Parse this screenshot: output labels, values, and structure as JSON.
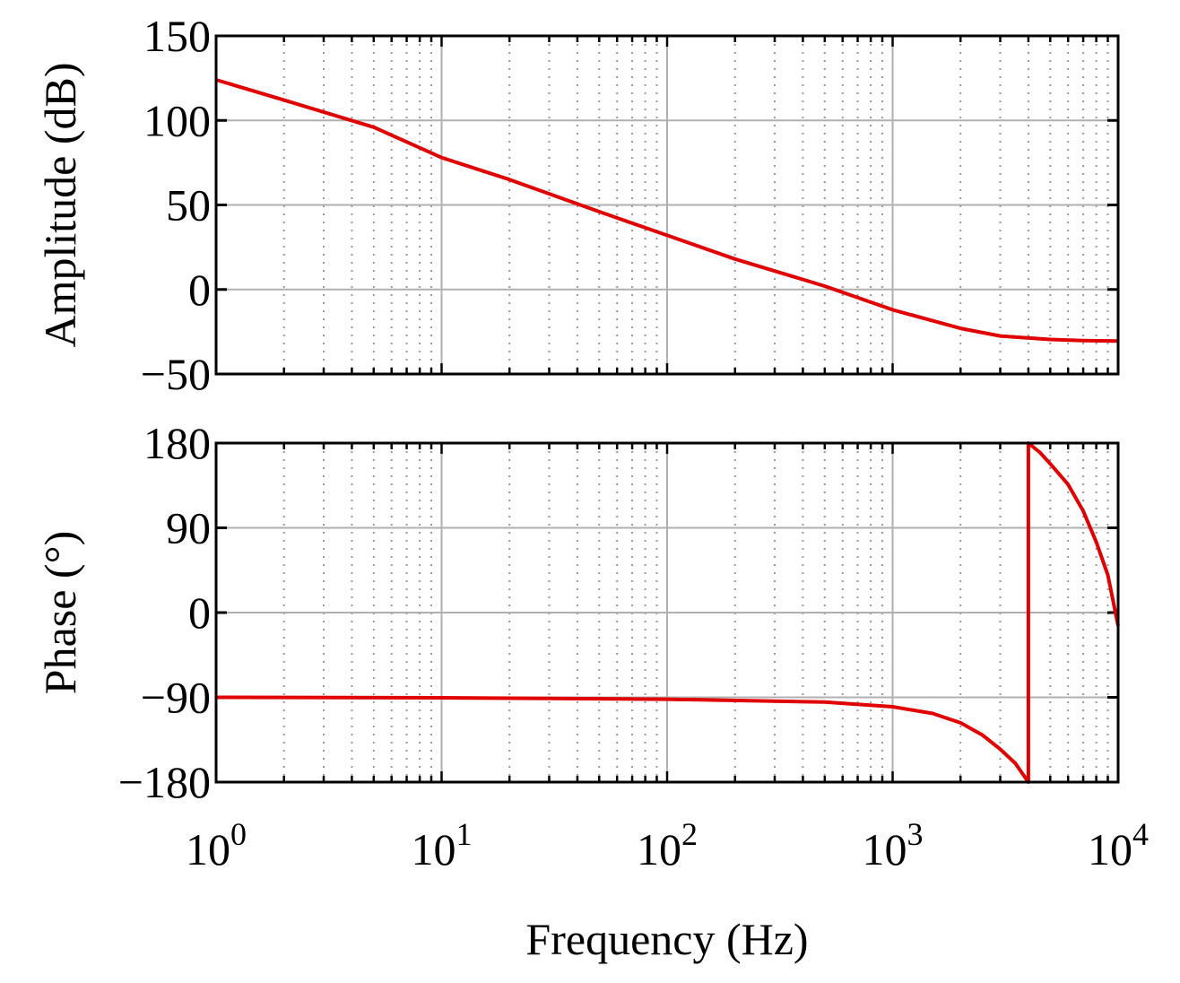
{
  "chart_data": [
    {
      "type": "line",
      "name": "amplitude",
      "title": "",
      "xlabel": "",
      "ylabel": "Amplitude (dB)",
      "xscale": "log",
      "xlim": [
        1,
        10000
      ],
      "ylim": [
        -50,
        150
      ],
      "yticks": [
        "150",
        "100",
        "50",
        "0",
        "−50"
      ],
      "ytick_values": [
        150,
        100,
        50,
        0,
        -50
      ],
      "grid": true,
      "color": "#e00000",
      "series": [
        {
          "x": [
            1,
            2,
            5,
            10,
            20,
            50,
            100,
            200,
            500,
            1000,
            2000,
            3000,
            5000,
            7000,
            10000
          ],
          "values": [
            124,
            112,
            96,
            78,
            65,
            46,
            32,
            18,
            2,
            -12,
            -23,
            -27.5,
            -29.6,
            -30.2,
            -30.5
          ]
        }
      ]
    },
    {
      "type": "line",
      "name": "phase",
      "title": "",
      "xlabel": "Frequency (Hz)",
      "ylabel": "Phase (°)",
      "xscale": "log",
      "xlim": [
        1,
        10000
      ],
      "ylim": [
        -180,
        180
      ],
      "yticks": [
        "180",
        "90",
        "0",
        "−90",
        "−180"
      ],
      "ytick_values": [
        180,
        90,
        0,
        -90,
        -180
      ],
      "xticks": [
        {
          "base": "10",
          "exp": "0"
        },
        {
          "base": "10",
          "exp": "1"
        },
        {
          "base": "10",
          "exp": "2"
        },
        {
          "base": "10",
          "exp": "3"
        },
        {
          "base": "10",
          "exp": "4"
        }
      ],
      "xtick_values": [
        1,
        10,
        100,
        1000,
        10000
      ],
      "grid": true,
      "color": "#e00000",
      "series": [
        {
          "x": [
            1,
            10,
            100,
            500,
            1000,
            1500,
            2000,
            2500,
            3000,
            3500,
            4000,
            4000,
            4500,
            5000,
            6000,
            7000,
            8000,
            9000,
            10000
          ],
          "values": [
            -90,
            -90.5,
            -92,
            -95,
            -100,
            -107,
            -117,
            -130,
            -145,
            -160,
            -180,
            180,
            170,
            158,
            136,
            108,
            75,
            40,
            -14
          ]
        }
      ]
    }
  ]
}
